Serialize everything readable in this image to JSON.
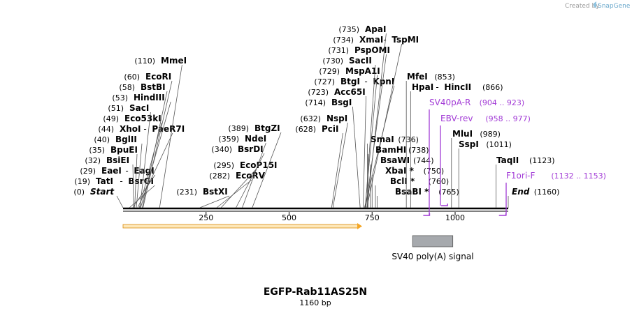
{
  "credit": {
    "prefix": "Created by",
    "brand": "SnapGene"
  },
  "plasmid": {
    "name": "EGFP-Rab11AS25N",
    "length": "1160 bp"
  },
  "scale": {
    "total": 1160,
    "ticks": [
      {
        "value": 250,
        "label": "250"
      },
      {
        "value": 500,
        "label": "500"
      },
      {
        "value": 750,
        "label": "750"
      },
      {
        "value": 1000,
        "label": "1000"
      }
    ]
  },
  "cut_sites": [
    {
      "pos": 0,
      "pos_label": "(0)",
      "names": [
        "Start"
      ],
      "italic": true
    },
    {
      "pos": 19,
      "pos_label": "(19)",
      "names": [
        "TatI",
        "BsrGI"
      ]
    },
    {
      "pos": 29,
      "pos_label": "(29)",
      "names": [
        "EaeI",
        "EagI"
      ]
    },
    {
      "pos": 32,
      "pos_label": "(32)",
      "names": [
        "BsiEI"
      ]
    },
    {
      "pos": 35,
      "pos_label": "(35)",
      "names": [
        "BpuEI"
      ]
    },
    {
      "pos": 40,
      "pos_label": "(40)",
      "names": [
        "BglII"
      ]
    },
    {
      "pos": 44,
      "pos_label": "(44)",
      "names": [
        "XhoI",
        "PaeR7I"
      ]
    },
    {
      "pos": 49,
      "pos_label": "(49)",
      "names": [
        "Eco53kI"
      ]
    },
    {
      "pos": 51,
      "pos_label": "(51)",
      "names": [
        "SacI"
      ]
    },
    {
      "pos": 53,
      "pos_label": "(53)",
      "names": [
        "HindIII"
      ]
    },
    {
      "pos": 58,
      "pos_label": "(58)",
      "names": [
        "BstBI"
      ]
    },
    {
      "pos": 60,
      "pos_label": "(60)",
      "names": [
        "EcoRI"
      ]
    },
    {
      "pos": 110,
      "pos_label": "(110)",
      "names": [
        "MmeI"
      ]
    },
    {
      "pos": 231,
      "pos_label": "(231)",
      "names": [
        "BstXI"
      ]
    },
    {
      "pos": 282,
      "pos_label": "(282)",
      "names": [
        "EcoRV"
      ]
    },
    {
      "pos": 295,
      "pos_label": "(295)",
      "names": [
        "EcoP15I"
      ]
    },
    {
      "pos": 340,
      "pos_label": "(340)",
      "names": [
        "BsrDI"
      ]
    },
    {
      "pos": 359,
      "pos_label": "(359)",
      "names": [
        "NdeI"
      ]
    },
    {
      "pos": 389,
      "pos_label": "(389)",
      "names": [
        "BtgZI"
      ]
    },
    {
      "pos": 628,
      "pos_label": "(628)",
      "names": [
        "PciI"
      ]
    },
    {
      "pos": 632,
      "pos_label": "(632)",
      "names": [
        "NspI"
      ]
    },
    {
      "pos": 714,
      "pos_label": "(714)",
      "names": [
        "BsgI"
      ]
    },
    {
      "pos": 723,
      "pos_label": "(723)",
      "names": [
        "Acc65I"
      ]
    },
    {
      "pos": 727,
      "pos_label": "(727)",
      "names": [
        "BtgI",
        "KpnI"
      ]
    },
    {
      "pos": 729,
      "pos_label": "(729)",
      "names": [
        "MspA1I"
      ]
    },
    {
      "pos": 730,
      "pos_label": "(730)",
      "names": [
        "SacII"
      ]
    },
    {
      "pos": 731,
      "pos_label": "(731)",
      "names": [
        "PspOMI"
      ]
    },
    {
      "pos": 734,
      "pos_label": "(734)",
      "names": [
        "XmaI",
        "TspMI"
      ]
    },
    {
      "pos": 735,
      "pos_label": "(735)",
      "names": [
        "ApaI"
      ]
    },
    {
      "pos": 736,
      "pos_label": "(736)",
      "names": [
        "SmaI"
      ]
    },
    {
      "pos": 738,
      "pos_label": "(738)",
      "names": [
        "BamHI"
      ]
    },
    {
      "pos": 744,
      "pos_label": "(744)",
      "names": [
        "BsaWI"
      ]
    },
    {
      "pos": 750,
      "pos_label": "(750)",
      "names": [
        "XbaI *"
      ]
    },
    {
      "pos": 760,
      "pos_label": "(760)",
      "names": [
        "BclI *"
      ]
    },
    {
      "pos": 765,
      "pos_label": "(765)",
      "names": [
        "BsaBI *"
      ]
    },
    {
      "pos": 853,
      "pos_label": "(853)",
      "names": [
        "MfeI"
      ]
    },
    {
      "pos": 866,
      "pos_label": "(866)",
      "names": [
        "HpaI",
        "HincII"
      ]
    },
    {
      "pos": 989,
      "pos_label": "(989)",
      "names": [
        "MluI"
      ]
    },
    {
      "pos": 1011,
      "pos_label": "(1011)",
      "names": [
        "SspI"
      ]
    },
    {
      "pos": 1123,
      "pos_label": "(1123)",
      "names": [
        "TaqII"
      ]
    },
    {
      "pos": 1160,
      "pos_label": "(1160)",
      "names": [
        "End"
      ],
      "italic": true
    }
  ],
  "primers": [
    {
      "name": "SV40pA-R",
      "range": "(904 .. 923)",
      "start": 904,
      "end": 923
    },
    {
      "name": "EBV-rev",
      "range": "(958 .. 977)",
      "start": 958,
      "end": 977
    },
    {
      "name": "F1ori-F",
      "range": "(1132 .. 1153)",
      "start": 1132,
      "end": 1153
    }
  ],
  "features": [
    {
      "name": "",
      "type": "arrow",
      "start": 0,
      "end": 720,
      "color": "#f5a623"
    },
    {
      "name": "SV40 poly(A) signal",
      "type": "box",
      "start": 872,
      "end": 993,
      "color": "#a6a9ad"
    }
  ],
  "colors": {
    "primer": "#a23bd6",
    "arrow": "#f5a623",
    "box": "#a6a9ad",
    "brand": "#8fc3e0"
  }
}
